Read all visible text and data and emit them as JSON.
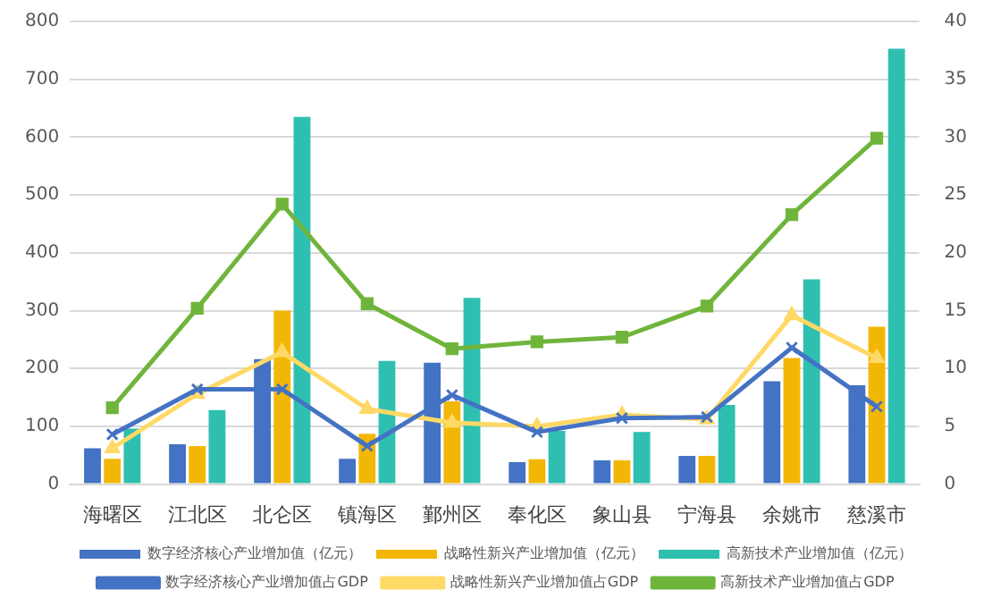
{
  "chart_data": {
    "type": "bar",
    "categories": [
      "海曙区",
      "江北区",
      "北仑区",
      "镇海区",
      "鄞州区",
      "奉化区",
      "象山县",
      "宁海县",
      "余姚市",
      "慈溪市"
    ],
    "series": [
      {
        "name": "数字经济核心产业增加值（亿元）",
        "color": "#4472c4",
        "values": [
          62,
          69,
          216,
          44,
          210,
          38,
          41,
          49,
          178,
          171
        ]
      },
      {
        "name": "战略性新兴产业增加值（亿元）",
        "color": "#f2b705",
        "values": [
          44,
          66,
          300,
          87,
          143,
          43,
          41,
          49,
          218,
          272
        ]
      },
      {
        "name": "高新技术产业增加值（亿元）",
        "color": "#2fbfb0",
        "values": [
          96,
          128,
          635,
          213,
          322,
          92,
          90,
          137,
          354,
          753
        ]
      },
      {
        "name": "数字经济核心产业增加值占GDP",
        "type": "line",
        "axis": "y2",
        "marker": "cross",
        "color": "#4472c4",
        "values": [
          4.3,
          8.2,
          8.2,
          3.3,
          7.7,
          4.5,
          5.7,
          5.8,
          11.8,
          6.7
        ]
      },
      {
        "name": "战略性新兴产业增加值占GDP",
        "type": "line",
        "axis": "y2",
        "marker": "triangle",
        "color": "#ffd966",
        "values": [
          3.1,
          7.8,
          11.4,
          6.5,
          5.3,
          5.0,
          6.0,
          5.6,
          14.6,
          10.9
        ]
      },
      {
        "name": "高新技术产业增加值占GDP",
        "type": "line",
        "axis": "y2",
        "marker": "square",
        "color": "#70b53b",
        "values": [
          6.6,
          15.2,
          24.2,
          15.6,
          11.7,
          12.3,
          12.7,
          15.4,
          23.3,
          29.9
        ]
      }
    ],
    "ylim": [
      0,
      800
    ],
    "yticks": [
      0,
      100,
      200,
      300,
      400,
      500,
      600,
      700,
      800
    ],
    "y2lim": [
      0,
      40
    ],
    "y2ticks": [
      0,
      5,
      10,
      15,
      20,
      25,
      30,
      35,
      40
    ],
    "grid": "y",
    "legend": "bottom"
  }
}
